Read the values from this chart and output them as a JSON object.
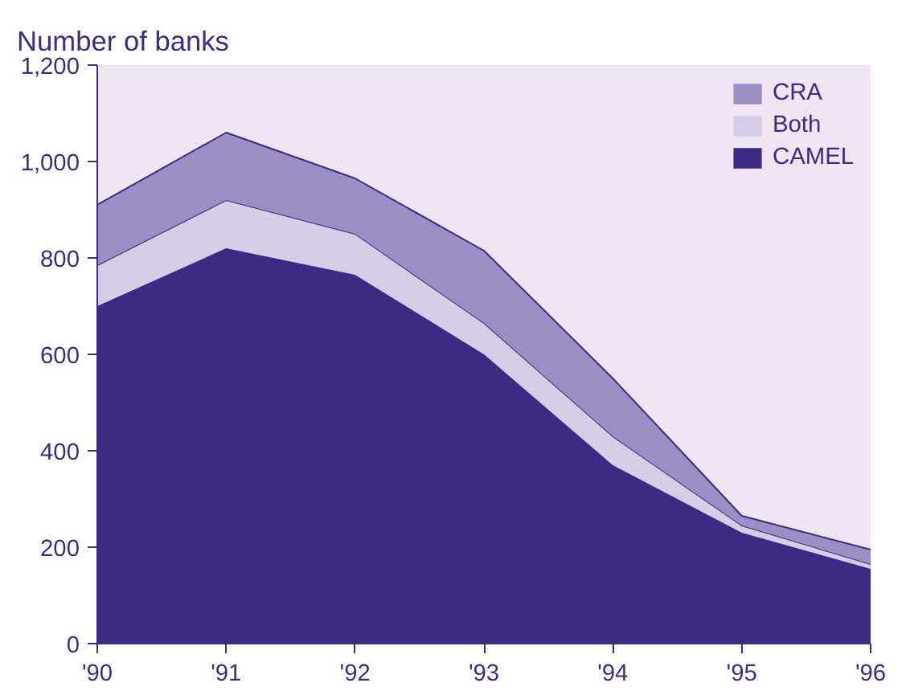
{
  "chart_data": {
    "type": "area",
    "stacked": true,
    "ylabel": "Number of banks",
    "categories": [
      "'90",
      "'91",
      "'92",
      "'93",
      "'94",
      "'95",
      "'96"
    ],
    "series": [
      {
        "name": "CAMEL",
        "color": "#3c2a84",
        "values": [
          700,
          820,
          765,
          600,
          370,
          230,
          155
        ]
      },
      {
        "name": "Both",
        "color": "#d5cde6",
        "values": [
          85,
          100,
          85,
          65,
          60,
          15,
          10
        ]
      },
      {
        "name": "CRA",
        "color": "#9b8ec4",
        "values": [
          125,
          140,
          115,
          150,
          120,
          20,
          30
        ]
      }
    ],
    "ylim": [
      0,
      1200
    ],
    "yticks": [
      0,
      200,
      400,
      600,
      800,
      {
        "value": 1000,
        "label": "1,000"
      },
      {
        "value": 1200,
        "label": "1,200"
      }
    ],
    "grid": false,
    "legend": "top right"
  }
}
